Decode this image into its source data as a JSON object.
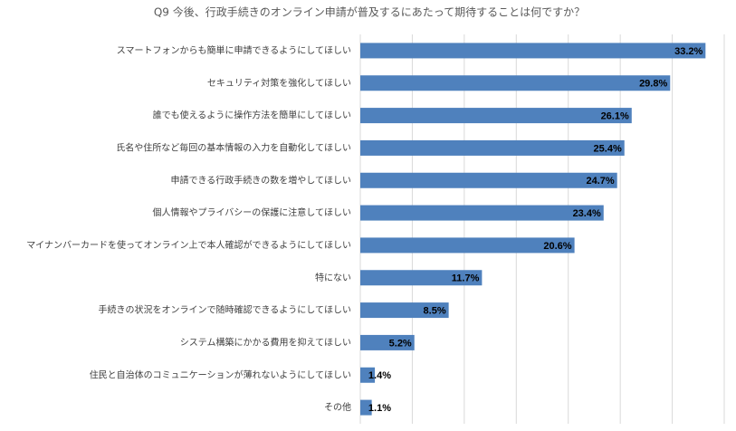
{
  "chart_data": {
    "type": "bar",
    "orientation": "horizontal",
    "title": "Q9 今後、行政手続きのオンライン申請が普及するにあたって期待することは何ですか？",
    "categories": [
      "スマートフォンからも簡単に申請できるようにしてほしい",
      "セキュリティ対策を強化してほしい",
      "誰でも使えるように操作方法を簡単にしてほしい",
      "氏名や住所など毎回の基本情報の入力を自動化してほしい",
      "申請できる行政手続きの数を増やしてほしい",
      "個人情報やプライバシーの保護に注意してほしい",
      "マイナンバーカードを使ってオンライン上で本人確認ができるようにしてほしい",
      "特にない",
      "手続きの状況をオンラインで随時確認できるようにしてほしい",
      "システム構築にかかる費用を抑えてほしい",
      "住民と自治体のコミュニケーションが薄れないようにしてほしい",
      "その他"
    ],
    "values": [
      33.2,
      29.8,
      26.1,
      25.4,
      24.7,
      23.4,
      20.6,
      11.7,
      8.5,
      5.2,
      1.4,
      1.1
    ],
    "value_labels": [
      "33.2%",
      "29.8%",
      "26.1%",
      "25.4%",
      "24.7%",
      "23.4%",
      "20.6%",
      "11.7%",
      "8.5%",
      "5.2%",
      "1.4%",
      "1.1%"
    ],
    "color": "#4f81bd",
    "xlim": [
      0,
      35
    ],
    "xticks": [
      0,
      5,
      10,
      15,
      20,
      25,
      30,
      35
    ],
    "grid": true
  }
}
